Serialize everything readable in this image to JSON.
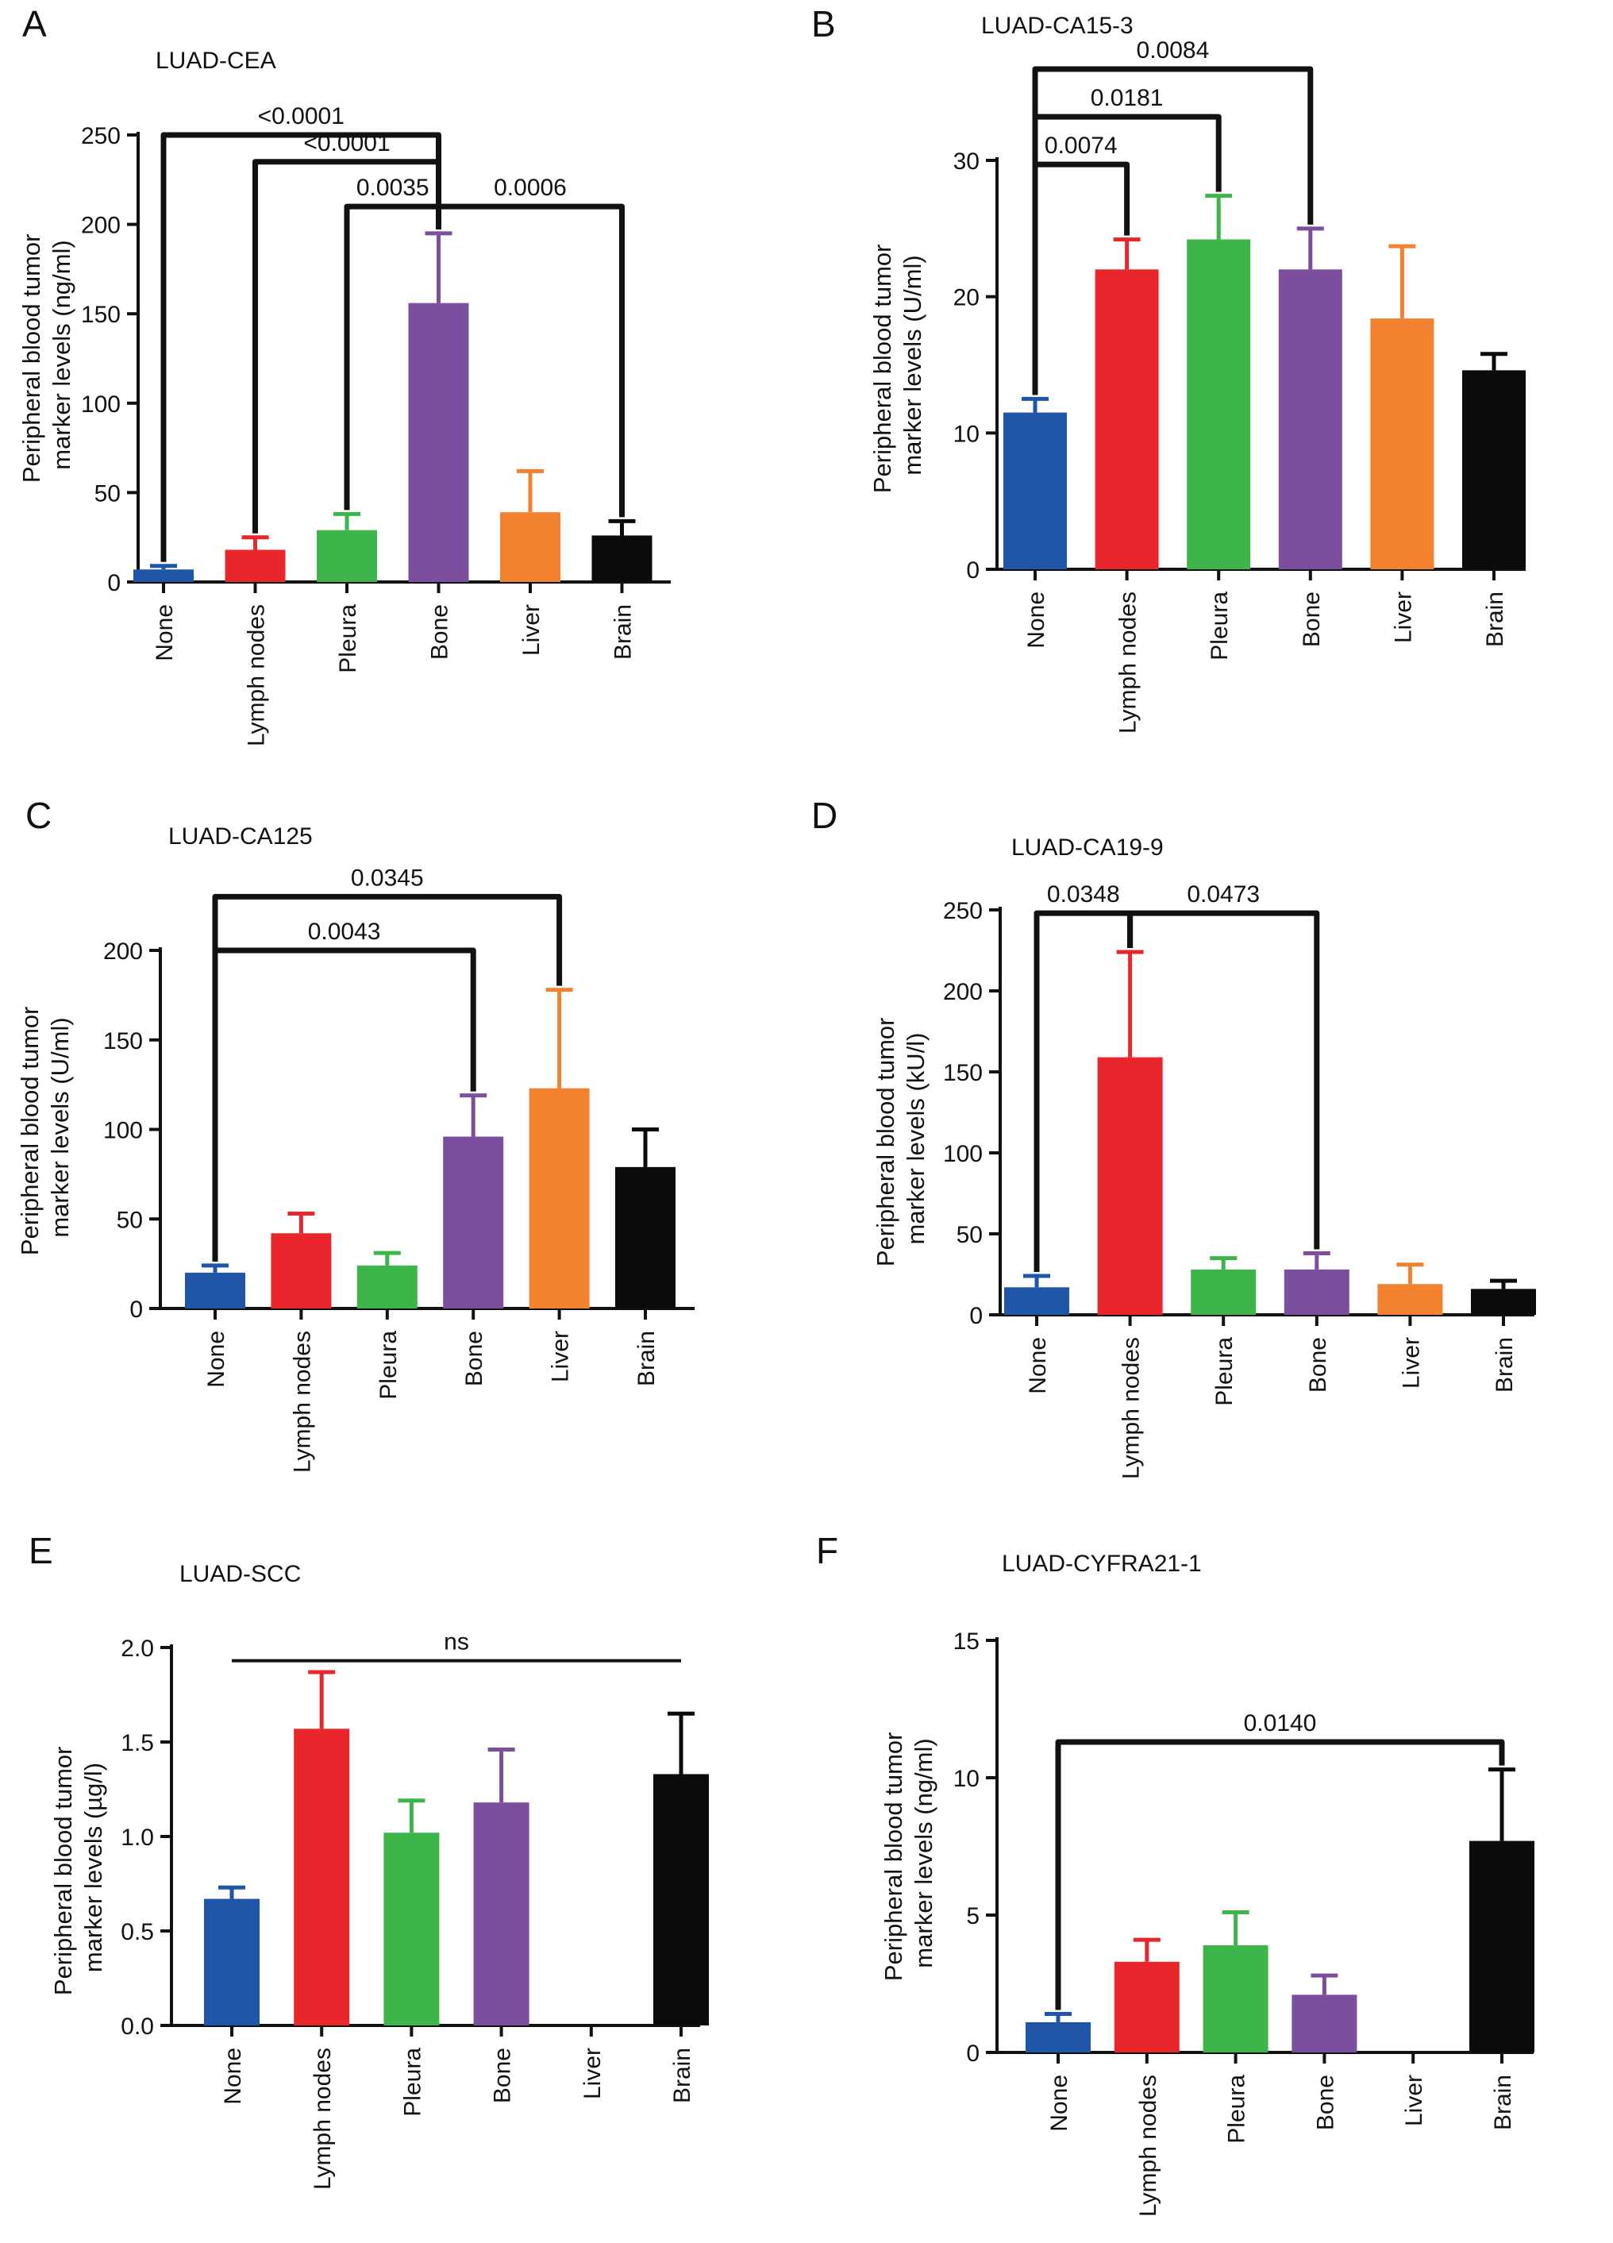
{
  "figure": {
    "background": "#ffffff",
    "ink": "#111111"
  },
  "colors": {
    "None": "#1f56a8",
    "Lymph nodes": "#e8262b",
    "Pleura": "#3db54a",
    "Bone": "#7b4f9e",
    "Liver": "#f28230",
    "Brain": "#0d0a0b"
  },
  "chart_data": [
    {
      "panel": "A",
      "title": "LUAD-CEA",
      "type": "bar",
      "ylabel": [
        "Peripheral blood tumor",
        "marker levels (ng/ml)"
      ],
      "categories": [
        "None",
        "Lymph nodes",
        "Pleura",
        "Bone",
        "Liver",
        "Brain"
      ],
      "values": [
        7,
        18,
        29,
        156,
        39,
        26
      ],
      "errors": [
        2,
        7,
        9,
        39,
        23,
        8
      ],
      "ylim": [
        0,
        250
      ],
      "ticks": [
        0,
        50,
        100,
        150,
        200,
        250
      ],
      "tick_labels": [
        "0",
        "50",
        "100",
        "150",
        "200",
        "250"
      ],
      "comparisons": [
        {
          "from": 0,
          "to": 3,
          "label": "<0.0001",
          "level": 250
        },
        {
          "from": 1,
          "to": 3,
          "label": "<0.0001",
          "level": 235
        },
        {
          "from": 2,
          "to": 3,
          "label": "0.0035",
          "level": 210
        },
        {
          "from": 3,
          "to": 5,
          "label": "0.0006",
          "level": 210
        }
      ]
    },
    {
      "panel": "B",
      "title": "LUAD-CA15-3",
      "type": "bar",
      "ylabel": [
        "Peripheral blood tumor",
        "marker levels (U/ml)"
      ],
      "categories": [
        "None",
        "Lymph nodes",
        "Pleura",
        "Bone",
        "Liver",
        "Brain"
      ],
      "values": [
        11.5,
        22,
        24.2,
        22,
        18.4,
        14.6
      ],
      "errors": [
        1,
        2.2,
        3.2,
        3,
        5.3,
        1.2
      ],
      "ylim": [
        0,
        30
      ],
      "ticks": [
        0,
        10,
        20,
        30
      ],
      "tick_labels": [
        "0",
        "10",
        "20",
        "30"
      ],
      "comparisons": [
        {
          "from": 0,
          "to": 1,
          "label": "0.0074",
          "level": 29.7
        },
        {
          "from": 0,
          "to": 2,
          "label": "0.0181",
          "level": 33.2
        },
        {
          "from": 0,
          "to": 3,
          "label": "0.0084",
          "level": 36.7
        }
      ]
    },
    {
      "panel": "C",
      "title": "LUAD-CA125",
      "type": "bar",
      "ylabel": [
        "Peripheral blood tumor",
        "marker levels (U/ml)"
      ],
      "categories": [
        "None",
        "Lymph nodes",
        "Pleura",
        "Bone",
        "Liver",
        "Brain"
      ],
      "values": [
        20,
        42,
        24,
        96,
        123,
        79
      ],
      "errors": [
        4,
        11,
        7,
        23,
        55,
        21
      ],
      "ylim": [
        0,
        200
      ],
      "ticks": [
        0,
        50,
        100,
        150,
        200
      ],
      "tick_labels": [
        "0",
        "50",
        "100",
        "150",
        "200"
      ],
      "comparisons": [
        {
          "from": 0,
          "to": 3,
          "label": "0.0043",
          "level": 200
        },
        {
          "from": 0,
          "to": 4,
          "label": "0.0345",
          "level": 230
        }
      ]
    },
    {
      "panel": "D",
      "title": "LUAD-CA19-9",
      "type": "bar",
      "ylabel": [
        "Peripheral blood tumor",
        "marker levels (kU/l)"
      ],
      "categories": [
        "None",
        "Lymph nodes",
        "Pleura",
        "Bone",
        "Liver",
        "Brain"
      ],
      "values": [
        17,
        159,
        28,
        28,
        19,
        16
      ],
      "errors": [
        7,
        65,
        7,
        10,
        12,
        5
      ],
      "ylim": [
        0,
        250
      ],
      "ticks": [
        0,
        50,
        100,
        150,
        200,
        250
      ],
      "tick_labels": [
        "0",
        "50",
        "100",
        "150",
        "200",
        "250"
      ],
      "comparisons": [
        {
          "from": 0,
          "to": 1,
          "label": "0.0348",
          "level": 248
        },
        {
          "from": 1,
          "to": 3,
          "label": "0.0473",
          "level": 248
        }
      ]
    },
    {
      "panel": "E",
      "title": "LUAD-SCC",
      "type": "bar",
      "ylabel": [
        "Peripheral blood tumor",
        "marker levels (µg/l)"
      ],
      "categories": [
        "None",
        "Lymph nodes",
        "Pleura",
        "Bone",
        "Liver",
        "Brain"
      ],
      "values": [
        0.67,
        1.57,
        1.02,
        1.18,
        null,
        1.33
      ],
      "errors": [
        0.06,
        0.3,
        0.17,
        0.28,
        null,
        0.32
      ],
      "ylim": [
        0,
        2
      ],
      "ticks": [
        0,
        0.5,
        1.0,
        1.5,
        2.0
      ],
      "tick_labels": [
        "0.0",
        "0.5",
        "1.0",
        "1.5",
        "2.0"
      ],
      "comparisons": [
        {
          "from": 0,
          "to": 5,
          "label": "ns",
          "level": 1.93,
          "style": "line"
        }
      ]
    },
    {
      "panel": "F",
      "title": "LUAD-CYFRA21-1",
      "type": "bar",
      "ylabel": [
        "Peripheral blood tumor",
        "marker levels (ng/ml)"
      ],
      "categories": [
        "None",
        "Lymph nodes",
        "Pleura",
        "Bone",
        "Liver",
        "Brain"
      ],
      "values": [
        1.1,
        3.3,
        3.9,
        2.1,
        null,
        7.7
      ],
      "errors": [
        0.3,
        0.8,
        1.2,
        0.7,
        null,
        2.6
      ],
      "ylim": [
        0,
        15
      ],
      "ticks": [
        0,
        5,
        10,
        15
      ],
      "tick_labels": [
        "0",
        "5",
        "10",
        "15"
      ],
      "comparisons": [
        {
          "from": 0,
          "to": 5,
          "label": "0.0140",
          "level": 11.3
        }
      ]
    }
  ]
}
